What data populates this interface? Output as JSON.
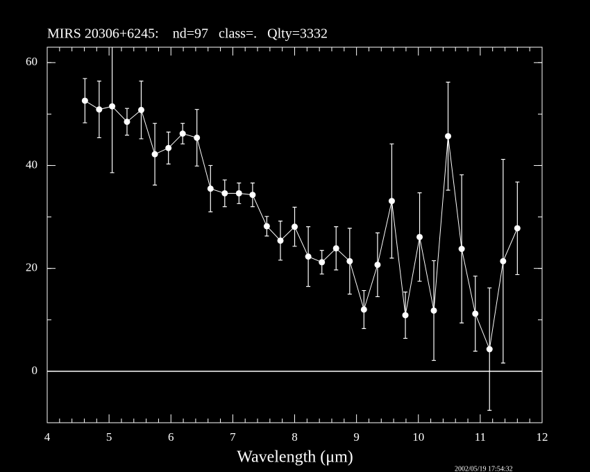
{
  "chart_data": {
    "type": "scatter",
    "title": "MIRS 20306+6245:    nd=97   class=.   Qlty=3332",
    "xlabel": "Wavelength (μm)",
    "timestamp": "2002/05/19 17:54:32",
    "color": "#ffffff",
    "zero_line": true,
    "xlim": [
      4,
      12
    ],
    "ylim": [
      -10,
      63
    ],
    "xticks": [
      4,
      5,
      6,
      7,
      8,
      9,
      10,
      11,
      12
    ],
    "yticks": [
      0,
      20,
      40,
      60
    ],
    "x": [
      4.61,
      4.84,
      5.05,
      5.29,
      5.52,
      5.74,
      5.96,
      6.19,
      6.42,
      6.64,
      6.87,
      7.1,
      7.32,
      7.55,
      7.77,
      8.0,
      8.22,
      8.44,
      8.67,
      8.89,
      9.12,
      9.34,
      9.57,
      9.79,
      10.02,
      10.25,
      10.48,
      10.7,
      10.92,
      11.15,
      11.37,
      11.6
    ],
    "values": [
      52.6,
      50.9,
      51.5,
      48.5,
      50.8,
      42.2,
      43.4,
      46.2,
      45.4,
      35.5,
      34.6,
      34.6,
      34.3,
      28.2,
      25.4,
      28.1,
      22.3,
      21.2,
      23.9,
      21.4,
      12.0,
      20.7,
      33.1,
      10.9,
      26.1,
      11.8,
      45.7,
      23.8,
      11.2,
      4.3,
      21.4,
      27.8
    ],
    "errors": [
      4.3,
      5.5,
      12.9,
      2.6,
      5.6,
      6.0,
      3.1,
      2.0,
      5.5,
      4.5,
      2.6,
      2.0,
      2.3,
      1.9,
      3.8,
      3.8,
      5.8,
      2.3,
      4.2,
      6.4,
      3.7,
      6.2,
      11.1,
      4.5,
      8.6,
      9.7,
      10.5,
      14.4,
      7.3,
      11.9,
      19.8,
      9.0
    ]
  }
}
